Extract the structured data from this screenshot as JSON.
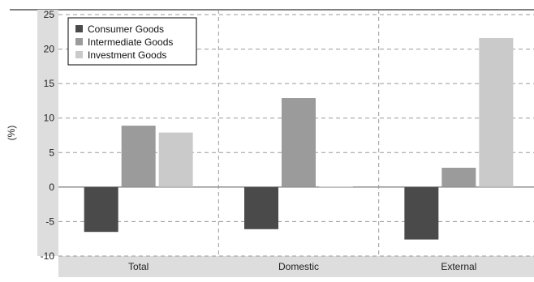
{
  "chart_data": {
    "type": "bar",
    "title": "",
    "xlabel": "",
    "ylabel": "(%)",
    "ylim": [
      -10,
      25
    ],
    "yticks": [
      -10,
      -5,
      0,
      5,
      10,
      15,
      20,
      25
    ],
    "categories": [
      "Total",
      "Domestic",
      "External"
    ],
    "series": [
      {
        "name": "Consumer Goods",
        "values": [
          -6.5,
          -6.1,
          -7.6
        ]
      },
      {
        "name": "Intermediate Goods",
        "values": [
          8.9,
          12.9,
          2.8
        ]
      },
      {
        "name": "Investment Goods",
        "values": [
          7.9,
          0.1,
          21.6
        ]
      }
    ],
    "colors": [
      "#4a4a4a",
      "#9b9b9b",
      "#cacaca"
    ],
    "grid": true,
    "legend_position": "top-left"
  }
}
